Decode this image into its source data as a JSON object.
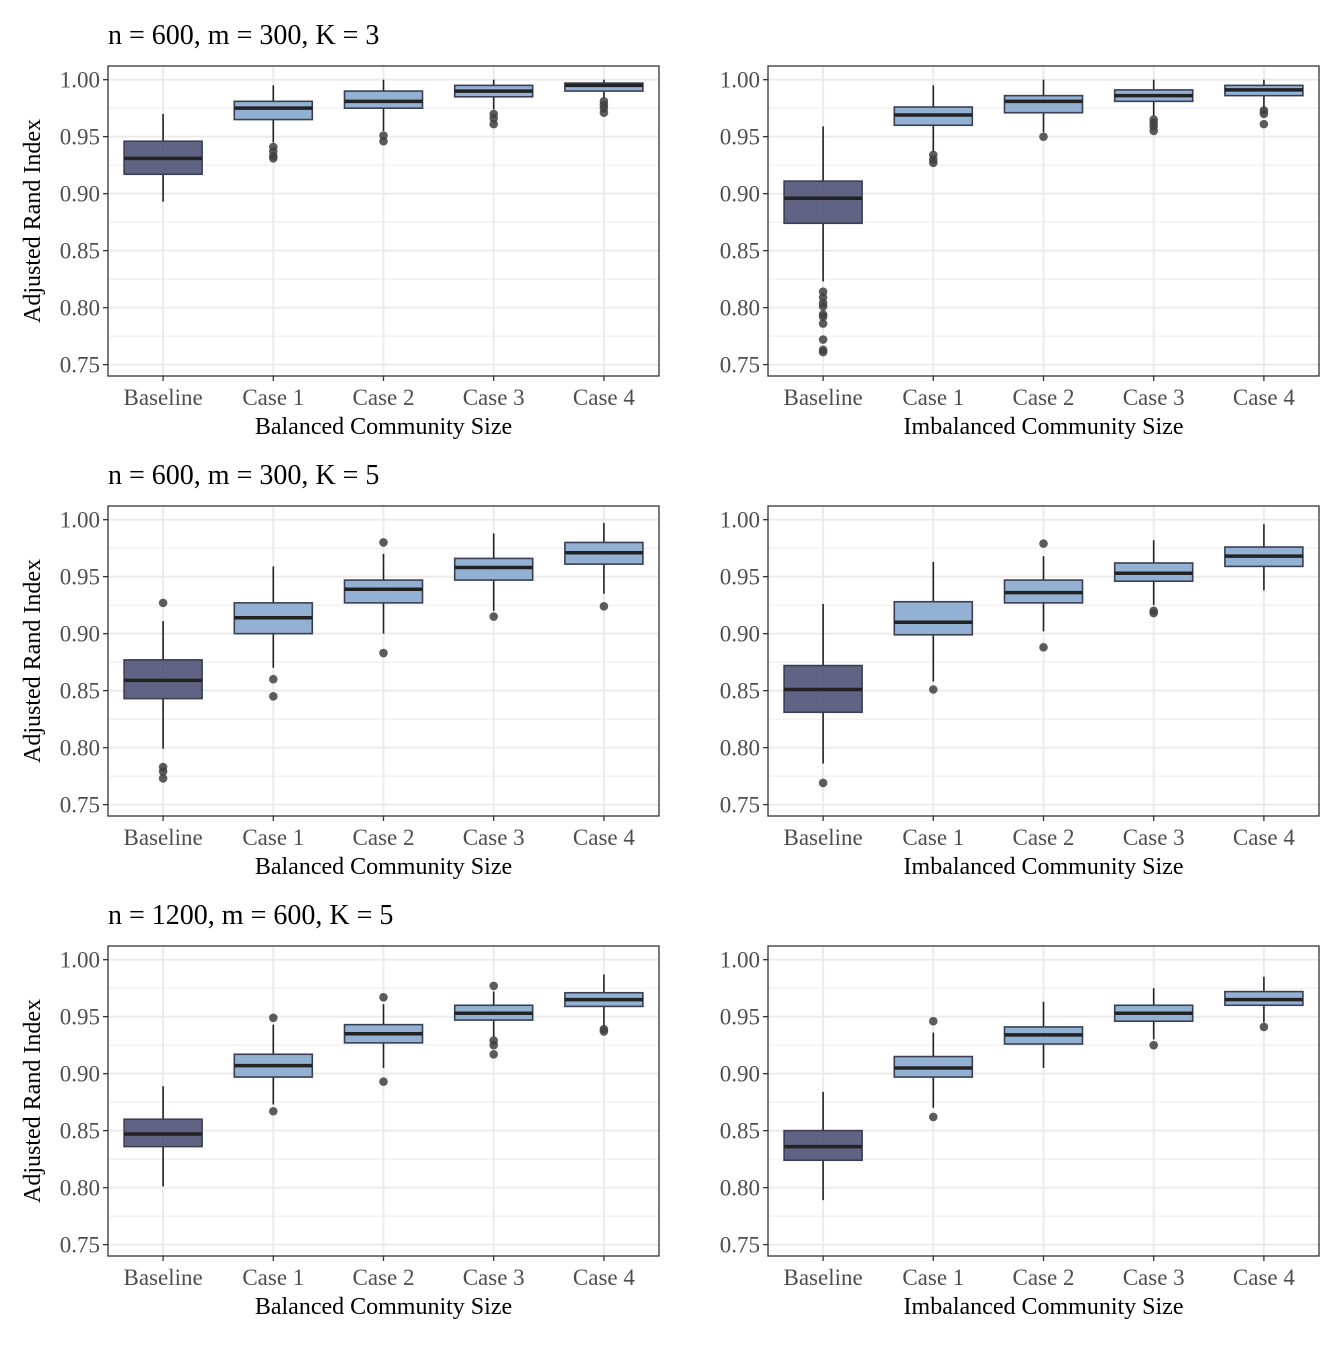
{
  "figure": {
    "y_axis_title": "Adjusted Rand Index",
    "row_titles": [
      "n = 600, m = 300, K = 3",
      "n = 600, m = 300, K = 5",
      "n = 1200, m = 600, K = 5"
    ],
    "colors": {
      "baseline_fill": "#4f5275",
      "case_fill": "#86a9ce",
      "median": "#222222",
      "outlier": "#404040",
      "grid": "#ebebeb",
      "border": "#333333"
    }
  },
  "chart_data": [
    {
      "type": "boxplot",
      "row": 0,
      "col": 0,
      "title": "n = 600, m = 300, K = 3",
      "xlabel": "Balanced Community Size",
      "ylabel": "Adjusted Rand Index",
      "categories": [
        "Baseline",
        "Case 1",
        "Case 2",
        "Case 3",
        "Case 4"
      ],
      "ylim": [
        0.74,
        1.012
      ],
      "yticks": [
        0.75,
        0.8,
        0.85,
        0.9,
        0.95,
        1.0
      ],
      "ytick_labels": [
        "0.75",
        "0.80",
        "0.85",
        "0.90",
        "0.95",
        "1.00"
      ],
      "boxes": [
        {
          "whisker_low": 0.893,
          "q1": 0.917,
          "median": 0.931,
          "q3": 0.946,
          "whisker_high": 0.97,
          "outliers": []
        },
        {
          "whisker_low": 0.945,
          "q1": 0.965,
          "median": 0.975,
          "q3": 0.981,
          "whisker_high": 0.995,
          "outliers": [
            0.941,
            0.937,
            0.933,
            0.931
          ]
        },
        {
          "whisker_low": 0.955,
          "q1": 0.975,
          "median": 0.981,
          "q3": 0.99,
          "whisker_high": 1.0,
          "outliers": [
            0.951,
            0.946
          ]
        },
        {
          "whisker_low": 0.974,
          "q1": 0.985,
          "median": 0.99,
          "q3": 0.995,
          "whisker_high": 1.0,
          "outliers": [
            0.97,
            0.966,
            0.961
          ]
        },
        {
          "whisker_low": 0.984,
          "q1": 0.99,
          "median": 0.995,
          "q3": 0.997,
          "whisker_high": 1.0,
          "outliers": [
            0.981,
            0.978,
            0.975,
            0.971
          ]
        }
      ]
    },
    {
      "type": "boxplot",
      "row": 0,
      "col": 1,
      "title": "",
      "xlabel": "Imbalanced Community Size",
      "ylabel": "",
      "categories": [
        "Baseline",
        "Case 1",
        "Case 2",
        "Case 3",
        "Case 4"
      ],
      "ylim": [
        0.74,
        1.012
      ],
      "yticks": [
        0.75,
        0.8,
        0.85,
        0.9,
        0.95,
        1.0
      ],
      "ytick_labels": [
        "0.75",
        "0.80",
        "0.85",
        "0.90",
        "0.95",
        "1.00"
      ],
      "boxes": [
        {
          "whisker_low": 0.823,
          "q1": 0.874,
          "median": 0.896,
          "q3": 0.911,
          "whisker_high": 0.959,
          "outliers": [
            0.814,
            0.809,
            0.804,
            0.801,
            0.794,
            0.792,
            0.786,
            0.772,
            0.763,
            0.761
          ]
        },
        {
          "whisker_low": 0.937,
          "q1": 0.96,
          "median": 0.969,
          "q3": 0.976,
          "whisker_high": 0.995,
          "outliers": [
            0.934,
            0.93,
            0.927
          ]
        },
        {
          "whisker_low": 0.954,
          "q1": 0.971,
          "median": 0.981,
          "q3": 0.986,
          "whisker_high": 1.0,
          "outliers": [
            0.95
          ]
        },
        {
          "whisker_low": 0.968,
          "q1": 0.981,
          "median": 0.986,
          "q3": 0.991,
          "whisker_high": 1.0,
          "outliers": [
            0.965,
            0.962,
            0.959,
            0.955
          ]
        },
        {
          "whisker_low": 0.974,
          "q1": 0.986,
          "median": 0.991,
          "q3": 0.995,
          "whisker_high": 1.0,
          "outliers": [
            0.973,
            0.97,
            0.961
          ]
        }
      ]
    },
    {
      "type": "boxplot",
      "row": 1,
      "col": 0,
      "title": "n = 600, m = 300, K = 5",
      "xlabel": "Balanced Community Size",
      "ylabel": "Adjusted Rand Index",
      "categories": [
        "Baseline",
        "Case 1",
        "Case 2",
        "Case 3",
        "Case 4"
      ],
      "ylim": [
        0.74,
        1.012
      ],
      "yticks": [
        0.75,
        0.8,
        0.85,
        0.9,
        0.95,
        1.0
      ],
      "ytick_labels": [
        "0.75",
        "0.80",
        "0.85",
        "0.90",
        "0.95",
        "1.00"
      ],
      "boxes": [
        {
          "whisker_low": 0.799,
          "q1": 0.843,
          "median": 0.859,
          "q3": 0.877,
          "whisker_high": 0.911,
          "outliers": [
            0.927,
            0.783,
            0.779,
            0.773
          ]
        },
        {
          "whisker_low": 0.87,
          "q1": 0.9,
          "median": 0.914,
          "q3": 0.927,
          "whisker_high": 0.959,
          "outliers": [
            0.86,
            0.845
          ]
        },
        {
          "whisker_low": 0.9,
          "q1": 0.927,
          "median": 0.939,
          "q3": 0.947,
          "whisker_high": 0.97,
          "outliers": [
            0.98,
            0.883
          ]
        },
        {
          "whisker_low": 0.92,
          "q1": 0.947,
          "median": 0.958,
          "q3": 0.966,
          "whisker_high": 0.988,
          "outliers": [
            0.915
          ]
        },
        {
          "whisker_low": 0.935,
          "q1": 0.961,
          "median": 0.971,
          "q3": 0.98,
          "whisker_high": 0.997,
          "outliers": [
            0.924
          ]
        }
      ]
    },
    {
      "type": "boxplot",
      "row": 1,
      "col": 1,
      "title": "",
      "xlabel": "Imbalanced Community Size",
      "ylabel": "",
      "categories": [
        "Baseline",
        "Case 1",
        "Case 2",
        "Case 3",
        "Case 4"
      ],
      "ylim": [
        0.74,
        1.012
      ],
      "yticks": [
        0.75,
        0.8,
        0.85,
        0.9,
        0.95,
        1.0
      ],
      "ytick_labels": [
        "0.75",
        "0.80",
        "0.85",
        "0.90",
        "0.95",
        "1.00"
      ],
      "boxes": [
        {
          "whisker_low": 0.786,
          "q1": 0.831,
          "median": 0.851,
          "q3": 0.872,
          "whisker_high": 0.926,
          "outliers": [
            0.769
          ]
        },
        {
          "whisker_low": 0.858,
          "q1": 0.899,
          "median": 0.91,
          "q3": 0.928,
          "whisker_high": 0.963,
          "outliers": [
            0.851
          ]
        },
        {
          "whisker_low": 0.902,
          "q1": 0.927,
          "median": 0.936,
          "q3": 0.947,
          "whisker_high": 0.968,
          "outliers": [
            0.979,
            0.888
          ]
        },
        {
          "whisker_low": 0.925,
          "q1": 0.946,
          "median": 0.953,
          "q3": 0.962,
          "whisker_high": 0.982,
          "outliers": [
            0.92,
            0.918
          ]
        },
        {
          "whisker_low": 0.938,
          "q1": 0.959,
          "median": 0.968,
          "q3": 0.976,
          "whisker_high": 0.996,
          "outliers": []
        }
      ]
    },
    {
      "type": "boxplot",
      "row": 2,
      "col": 0,
      "title": "n = 1200, m = 600, K = 5",
      "xlabel": "Balanced Community Size",
      "ylabel": "Adjusted Rand Index",
      "categories": [
        "Baseline",
        "Case 1",
        "Case 2",
        "Case 3",
        "Case 4"
      ],
      "ylim": [
        0.74,
        1.012
      ],
      "yticks": [
        0.75,
        0.8,
        0.85,
        0.9,
        0.95,
        1.0
      ],
      "ytick_labels": [
        "0.75",
        "0.80",
        "0.85",
        "0.90",
        "0.95",
        "1.00"
      ],
      "boxes": [
        {
          "whisker_low": 0.801,
          "q1": 0.836,
          "median": 0.847,
          "q3": 0.86,
          "whisker_high": 0.889,
          "outliers": []
        },
        {
          "whisker_low": 0.873,
          "q1": 0.897,
          "median": 0.907,
          "q3": 0.917,
          "whisker_high": 0.943,
          "outliers": [
            0.949,
            0.867
          ]
        },
        {
          "whisker_low": 0.905,
          "q1": 0.927,
          "median": 0.935,
          "q3": 0.943,
          "whisker_high": 0.961,
          "outliers": [
            0.967,
            0.893
          ]
        },
        {
          "whisker_low": 0.932,
          "q1": 0.947,
          "median": 0.953,
          "q3": 0.96,
          "whisker_high": 0.972,
          "outliers": [
            0.977,
            0.929,
            0.925,
            0.917
          ]
        },
        {
          "whisker_low": 0.941,
          "q1": 0.959,
          "median": 0.965,
          "q3": 0.971,
          "whisker_high": 0.987,
          "outliers": [
            0.939,
            0.937
          ]
        }
      ]
    },
    {
      "type": "boxplot",
      "row": 2,
      "col": 1,
      "title": "",
      "xlabel": "Imbalanced Community Size",
      "ylabel": "",
      "categories": [
        "Baseline",
        "Case 1",
        "Case 2",
        "Case 3",
        "Case 4"
      ],
      "ylim": [
        0.74,
        1.012
      ],
      "yticks": [
        0.75,
        0.8,
        0.85,
        0.9,
        0.95,
        1.0
      ],
      "ytick_labels": [
        "0.75",
        "0.80",
        "0.85",
        "0.90",
        "0.95",
        "1.00"
      ],
      "boxes": [
        {
          "whisker_low": 0.789,
          "q1": 0.824,
          "median": 0.836,
          "q3": 0.85,
          "whisker_high": 0.884,
          "outliers": []
        },
        {
          "whisker_low": 0.87,
          "q1": 0.897,
          "median": 0.905,
          "q3": 0.915,
          "whisker_high": 0.936,
          "outliers": [
            0.946,
            0.862
          ]
        },
        {
          "whisker_low": 0.905,
          "q1": 0.926,
          "median": 0.934,
          "q3": 0.941,
          "whisker_high": 0.963,
          "outliers": []
        },
        {
          "whisker_low": 0.93,
          "q1": 0.946,
          "median": 0.953,
          "q3": 0.96,
          "whisker_high": 0.975,
          "outliers": [
            0.925
          ]
        },
        {
          "whisker_low": 0.945,
          "q1": 0.96,
          "median": 0.965,
          "q3": 0.972,
          "whisker_high": 0.985,
          "outliers": [
            0.941
          ]
        }
      ]
    }
  ]
}
